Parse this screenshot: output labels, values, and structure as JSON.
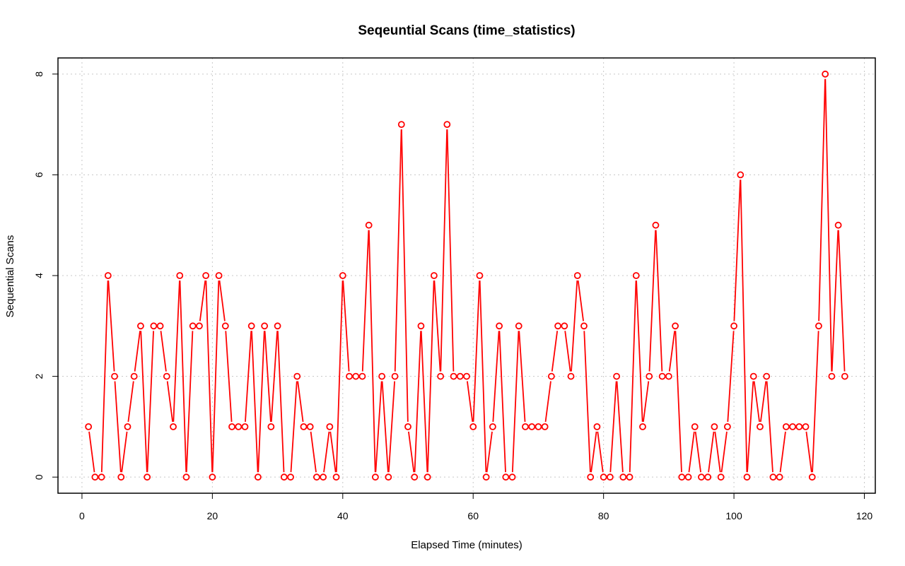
{
  "chart_data": {
    "type": "line",
    "title": "Seqeuntial Scans (time_statistics)",
    "xlabel": "Elapsed Time (minutes)",
    "ylabel": "Sequential Scans",
    "xlim": [
      -3.68,
      121.68
    ],
    "ylim": [
      -0.32,
      8.32
    ],
    "xticks": [
      0,
      20,
      40,
      60,
      80,
      100,
      120
    ],
    "yticks": [
      0,
      2,
      4,
      6,
      8
    ],
    "grid": true,
    "series_color": "#ff0000",
    "marker": "open-circle",
    "series": [
      {
        "x": [
          1,
          2,
          3,
          4,
          5,
          6,
          7,
          8,
          9,
          10,
          11,
          12,
          13,
          14,
          15,
          16,
          17,
          18,
          19,
          20,
          21,
          22,
          23,
          24,
          25,
          26,
          27,
          28,
          29,
          30,
          31,
          32,
          33,
          34,
          35,
          36,
          37,
          38,
          39,
          40,
          41,
          42,
          43,
          44,
          45,
          46,
          47,
          48,
          49,
          50,
          51,
          52,
          53,
          54,
          55,
          56,
          57,
          58,
          59,
          60,
          61,
          62,
          63,
          64,
          65,
          66,
          67,
          68,
          69,
          70,
          71,
          72,
          73,
          74,
          75,
          76,
          77,
          78,
          79,
          80,
          81,
          82,
          83,
          84,
          85,
          86,
          87,
          88,
          89,
          90,
          91,
          92,
          93,
          94,
          95,
          96,
          97,
          98,
          99,
          100,
          101,
          102,
          103,
          104,
          105,
          106,
          107,
          108,
          109,
          110,
          111,
          112,
          113,
          114,
          115,
          116,
          117
        ],
        "values": [
          1,
          0,
          0,
          4,
          2,
          0,
          1,
          2,
          3,
          0,
          3,
          3,
          2,
          1,
          4,
          0,
          3,
          3,
          4,
          0,
          4,
          3,
          1,
          1,
          1,
          3,
          0,
          3,
          1,
          3,
          0,
          0,
          2,
          1,
          1,
          0,
          0,
          1,
          0,
          4,
          2,
          2,
          2,
          5,
          0,
          2,
          0,
          2,
          7,
          1,
          0,
          3,
          0,
          4,
          2,
          7,
          2,
          2,
          2,
          1,
          4,
          0,
          1,
          3,
          0,
          0,
          3,
          1,
          1,
          1,
          1,
          2,
          3,
          3,
          2,
          4,
          3,
          0,
          1,
          0,
          0,
          2,
          0,
          0,
          4,
          1,
          2,
          5,
          2,
          2,
          3,
          0,
          0,
          1,
          0,
          0,
          1,
          0,
          1,
          3,
          6,
          0,
          2,
          1,
          2,
          0,
          0,
          1,
          1,
          1,
          1,
          0,
          3,
          8,
          2,
          5,
          2
        ]
      }
    ]
  }
}
